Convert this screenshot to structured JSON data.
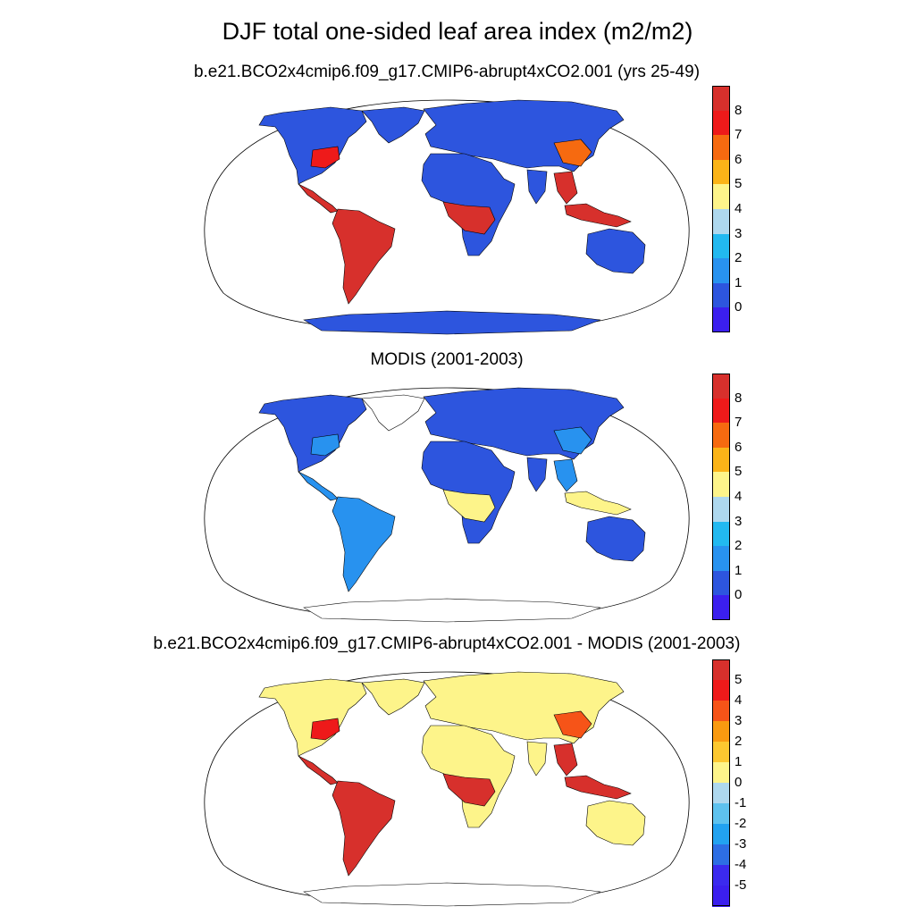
{
  "title": "DJF total one-sided leaf area index (m2/m2)",
  "panels": [
    {
      "id": "model",
      "subtitle": "b.e21.BCO2x4cmip6.f09_g17.CMIP6-abrupt4xCO2.001 (yrs 25-49)",
      "colorbar": {
        "labels": [
          "8",
          "7",
          "6",
          "5",
          "4",
          "3",
          "2",
          "1",
          "0"
        ],
        "colors": [
          "#d7302c",
          "#ee1a1a",
          "#f66a10",
          "#fbb418",
          "#fdf48a",
          "#aed8ee",
          "#22b9f0",
          "#2892ef",
          "#2d55de",
          "#3b1fee"
        ]
      },
      "regions": {
        "north_america": "#2d55de",
        "central_america": "#d7302c",
        "south_america": "#d7302c",
        "greenland": "#2d55de",
        "europe_asia": "#2d55de",
        "africa": "#2d55de",
        "africa_tropics": "#d7302c",
        "india": "#2d55de",
        "se_asia": "#d7302c",
        "maritime": "#d7302c",
        "australia": "#2d55de",
        "antarctica": "#2d55de",
        "east_asia_forest": "#f66a10",
        "na_east_forest": "#ee1a1a"
      }
    },
    {
      "id": "obs",
      "subtitle": "MODIS (2001-2003)",
      "colorbar": {
        "labels": [
          "8",
          "7",
          "6",
          "5",
          "4",
          "3",
          "2",
          "1",
          "0"
        ],
        "colors": [
          "#d7302c",
          "#ee1a1a",
          "#f66a10",
          "#fbb418",
          "#fdf48a",
          "#aed8ee",
          "#22b9f0",
          "#2892ef",
          "#2d55de",
          "#3b1fee"
        ]
      },
      "regions": {
        "north_america": "#2d55de",
        "central_america": "#2892ef",
        "south_america": "#2892ef",
        "greenland": "#ffffff",
        "europe_asia": "#2d55de",
        "africa": "#2d55de",
        "africa_tropics": "#fdf48a",
        "india": "#2d55de",
        "se_asia": "#2892ef",
        "maritime": "#fdf48a",
        "australia": "#2d55de",
        "antarctica": "#ffffff",
        "east_asia_forest": "#2892ef",
        "na_east_forest": "#2892ef"
      }
    },
    {
      "id": "diff",
      "subtitle": "b.e21.BCO2x4cmip6.f09_g17.CMIP6-abrupt4xCO2.001 - MODIS (2001-2003)",
      "colorbar": {
        "labels": [
          "5",
          "4",
          "3",
          "2",
          "1",
          "0",
          "-1",
          "-2",
          "-3",
          "-4",
          "-5"
        ],
        "colors": [
          "#d7302c",
          "#ee1a1a",
          "#f65418",
          "#f99a10",
          "#fcc830",
          "#fdf48a",
          "#aed8ee",
          "#5ec2ee",
          "#22a2f0",
          "#2d6ee4",
          "#3b2aee",
          "#3b1fee"
        ]
      },
      "regions": {
        "north_america": "#fdf48a",
        "central_america": "#d7302c",
        "south_america": "#d7302c",
        "greenland": "#fdf48a",
        "europe_asia": "#fdf48a",
        "africa": "#fdf48a",
        "africa_tropics": "#d7302c",
        "india": "#fdf48a",
        "se_asia": "#d7302c",
        "maritime": "#d7302c",
        "australia": "#fdf48a",
        "antarctica": "#ffffff",
        "east_asia_forest": "#f65418",
        "na_east_forest": "#ee1a1a"
      }
    }
  ]
}
